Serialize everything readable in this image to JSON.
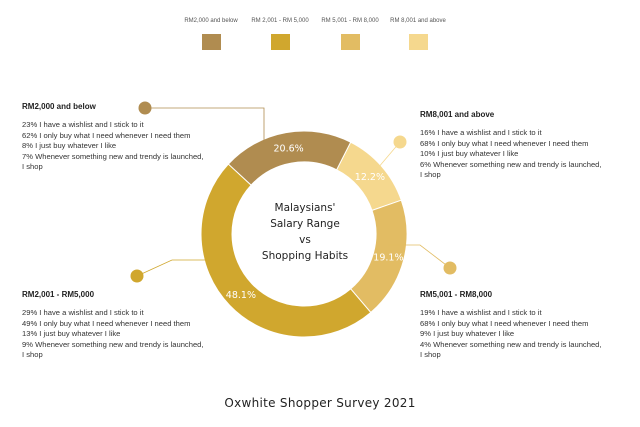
{
  "chart_data": {
    "type": "pie",
    "variant": "donut",
    "categories": [
      "RM2,000 and below",
      "RM 2,001 - RM 5,000",
      "RM 5,001 - RM 8,000",
      "RM 8,001 and above"
    ],
    "values": [
      20.6,
      48.1,
      19.1,
      12.2
    ],
    "value_labels": [
      "20.6%",
      "48.1%",
      "19.1%",
      "12.2%"
    ],
    "colors": [
      "#b08c50",
      "#d0a72e",
      "#e2bc63",
      "#f5d88e"
    ],
    "center_title": [
      "Malaysians'",
      "Salary Range",
      "vs",
      "Shopping Habits"
    ],
    "legend_position": "top",
    "annotations": [
      {
        "heading": "RM2,000 and below",
        "lines": [
          "23% I have a wishlist and I stick to it",
          "62% I only buy what I need whenever I need them",
          "8% I just buy whatever I like",
          "7% Whenever something new and trendy is launched,",
          "I shop"
        ]
      },
      {
        "heading": "RM2,001 - RM5,000",
        "lines": [
          "29% I have a wishlist and I stick to it",
          "49% I only buy what I need whenever I need them",
          "13% I just buy whatever I like",
          "9% Whenever something new and trendy is launched,",
          "I shop"
        ]
      },
      {
        "heading": "RM5,001 - RM8,000",
        "lines": [
          "19% I have a wishlist and I stick to it",
          "68% I only buy what I need whenever I need them",
          "9% I just buy whatever I like",
          "4% Whenever something new and trendy is launched,",
          "I shop"
        ]
      },
      {
        "heading": "RM8,001 and above",
        "lines": [
          "16% I have a wishlist and I stick to it",
          "68% I only buy what I need whenever I need them",
          "10% I just buy whatever I like",
          "6% Whenever something new and trendy is launched,",
          "I shop"
        ]
      }
    ]
  },
  "footer": {
    "title": "Oxwhite Shopper Survey 2021"
  }
}
